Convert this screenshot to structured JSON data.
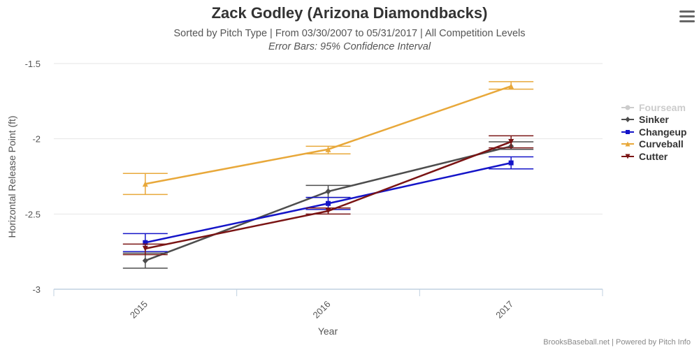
{
  "chart_data": {
    "type": "line",
    "title": "Zack Godley (Arizona Diamondbacks)",
    "subtitle": "Sorted by Pitch Type | From 03/30/2007 to 05/31/2017 | All Competition Levels",
    "caption": "Error Bars: 95% Confidence Interval",
    "xlabel": "Year",
    "ylabel": "Horizontal Release Point (ft)",
    "categories": [
      "2015",
      "2016",
      "2017"
    ],
    "ylim": [
      -3,
      -1.5
    ],
    "yticks": [
      "-1.5",
      "-2",
      "-2.5",
      "-3"
    ],
    "ytick_values": [
      -1.5,
      -2,
      -2.5,
      -3
    ],
    "legend_position": "right",
    "series": [
      {
        "name": "Fourseam",
        "color": "#cccccc",
        "marker": "circle",
        "visible": false,
        "values": [
          null,
          null,
          null
        ],
        "error_low": [
          null,
          null,
          null
        ],
        "error_high": [
          null,
          null,
          null
        ]
      },
      {
        "name": "Sinker",
        "color": "#4d4d4d",
        "marker": "diamond",
        "visible": true,
        "values": [
          -2.81,
          -2.35,
          -2.05
        ],
        "error_low": [
          -2.86,
          -2.39,
          -2.07
        ],
        "error_high": [
          -2.76,
          -2.31,
          -2.02
        ]
      },
      {
        "name": "Changeup",
        "color": "#1414c8",
        "marker": "square",
        "visible": true,
        "values": [
          -2.69,
          -2.43,
          -2.16
        ],
        "error_low": [
          -2.75,
          -2.47,
          -2.2
        ],
        "error_high": [
          -2.63,
          -2.39,
          -2.12
        ]
      },
      {
        "name": "Curveball",
        "color": "#e8a83a",
        "marker": "triangle",
        "visible": true,
        "values": [
          -2.3,
          -2.07,
          -1.65
        ],
        "error_low": [
          -2.37,
          -2.1,
          -1.67
        ],
        "error_high": [
          -2.23,
          -2.05,
          -1.62
        ]
      },
      {
        "name": "Cutter",
        "color": "#7a1414",
        "marker": "triangle-down",
        "visible": true,
        "values": [
          -2.73,
          -2.48,
          -2.02
        ],
        "error_low": [
          -2.77,
          -2.5,
          -2.06
        ],
        "error_high": [
          -2.7,
          -2.46,
          -1.98
        ]
      }
    ]
  },
  "credits": "BrooksBaseball.net | Powered by Pitch Info",
  "menu_icon": "hamburger-menu-icon"
}
